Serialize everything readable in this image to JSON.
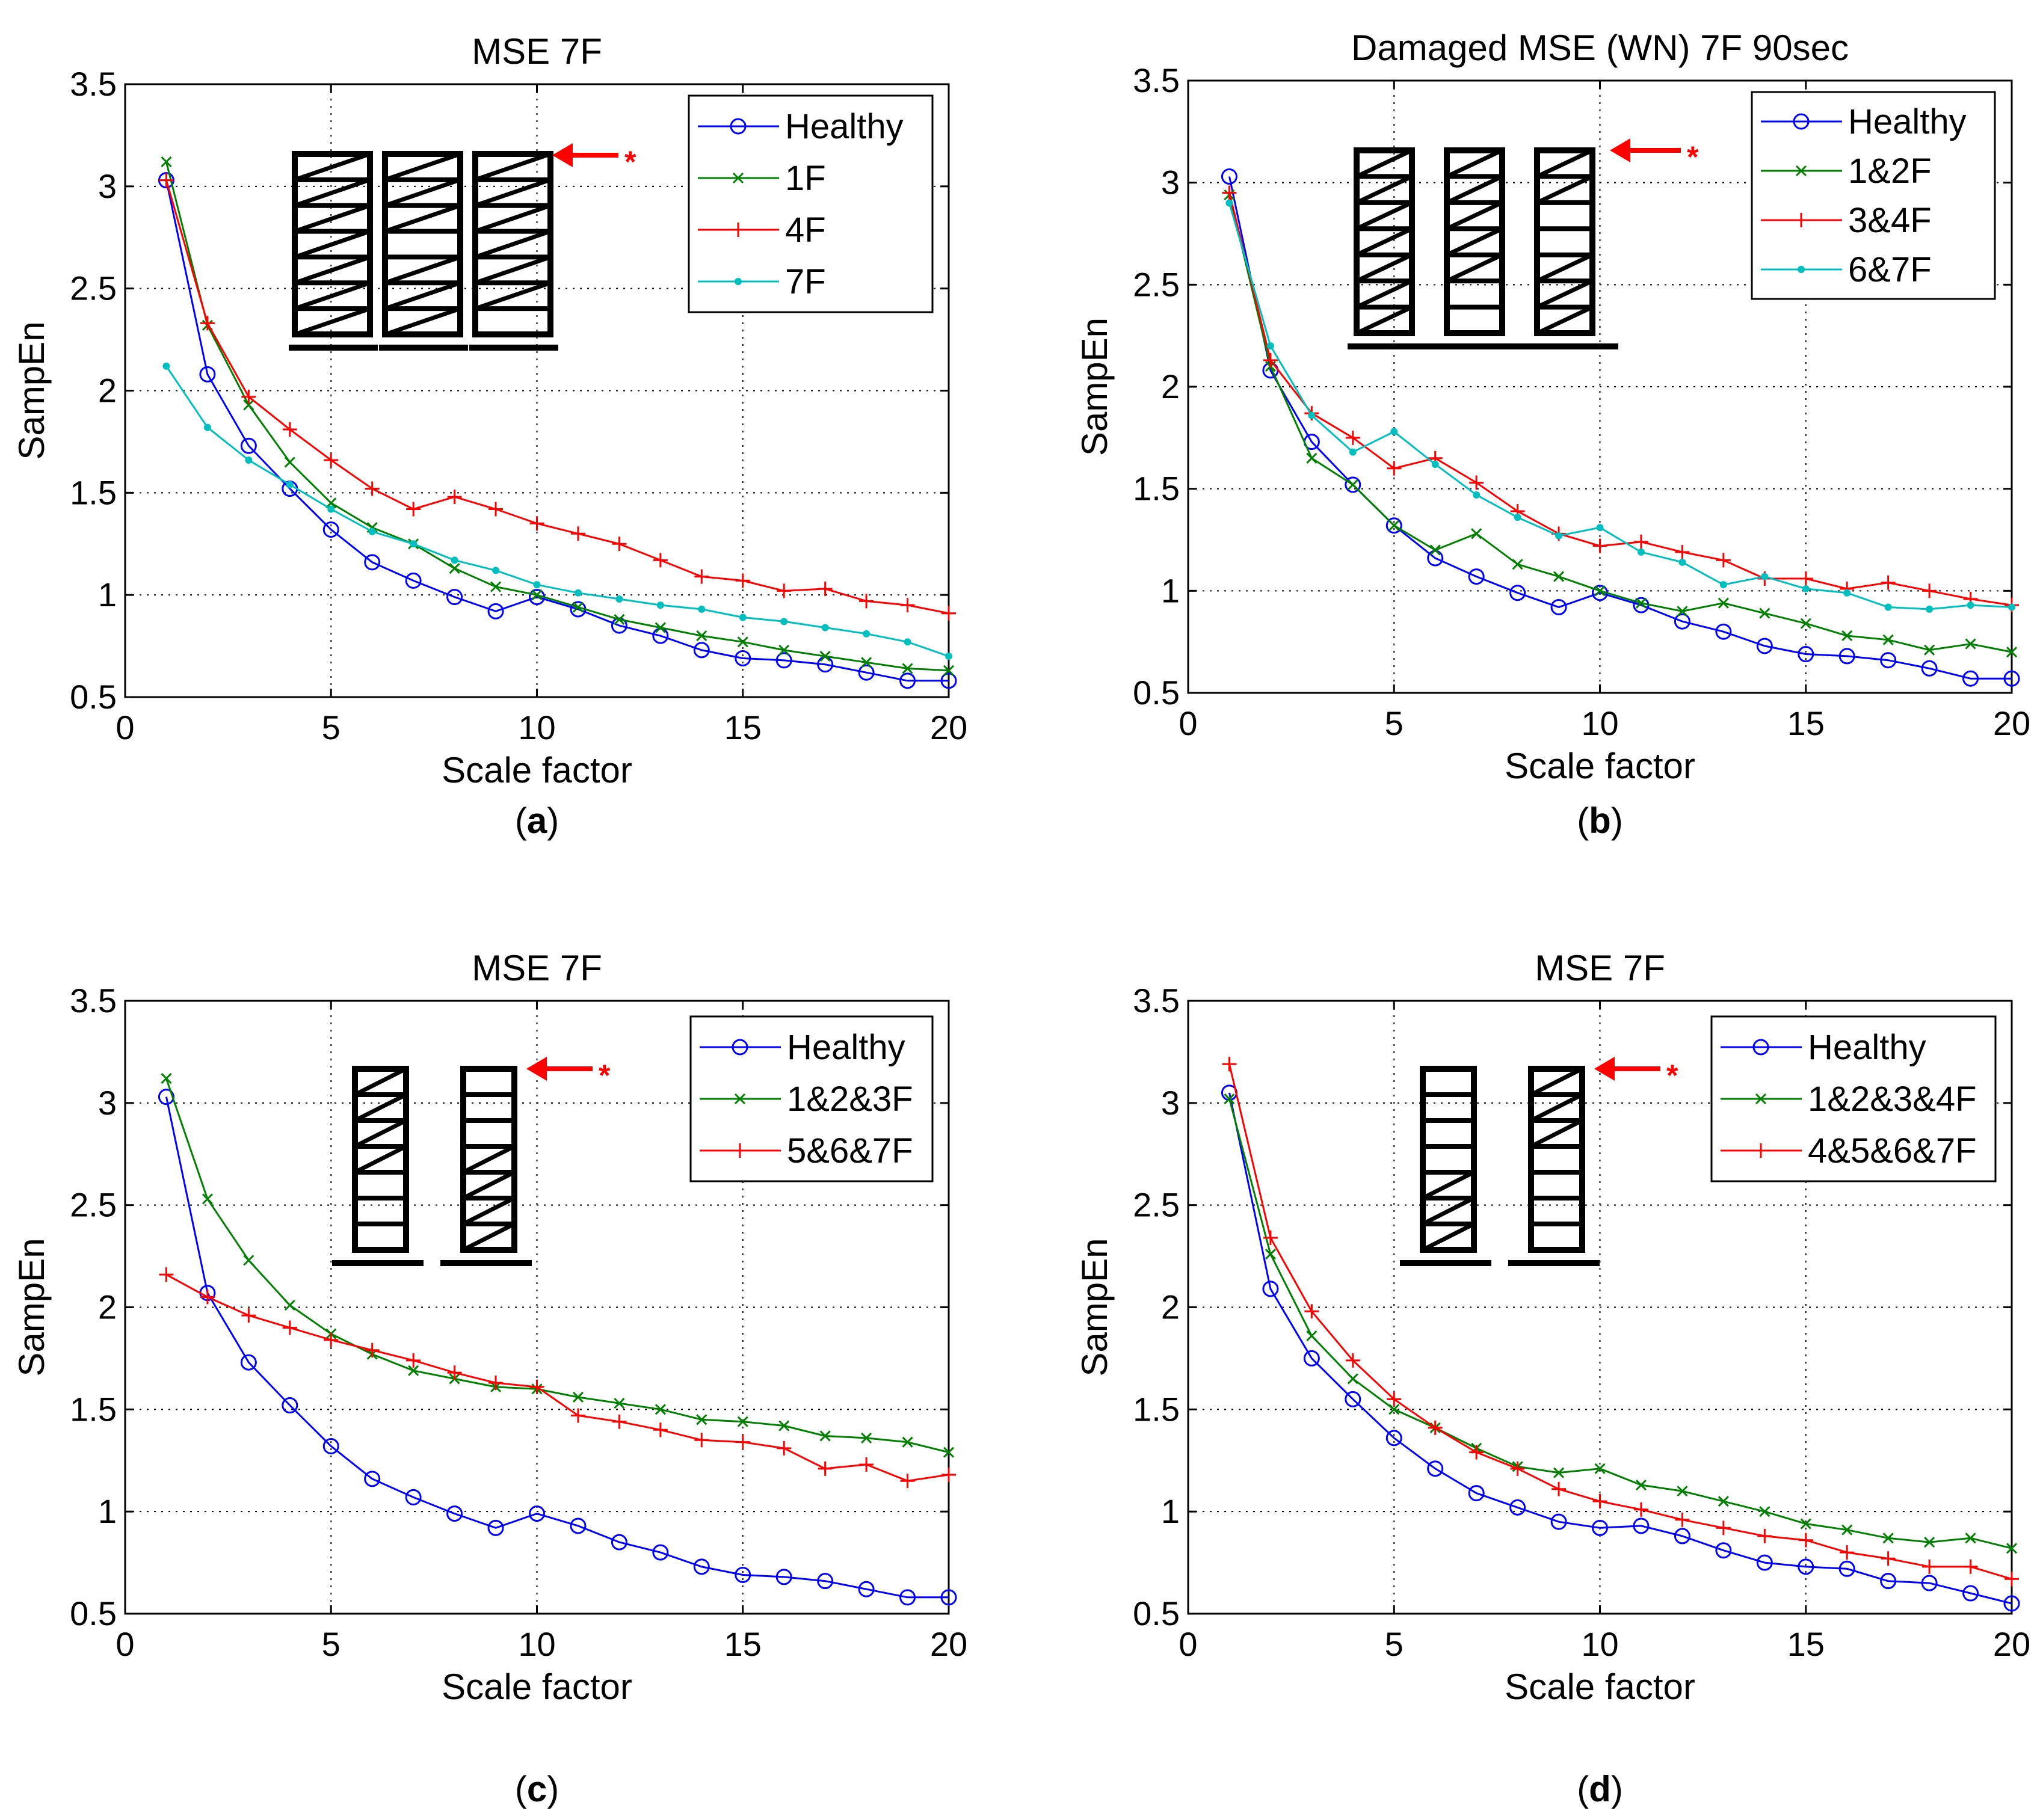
{
  "figure": {
    "panels": [
      "(a)",
      "(b)",
      "(c)",
      "(d)"
    ]
  },
  "chart_data": [
    {
      "id": "a",
      "type": "line",
      "title": "MSE 7F",
      "xlabel": "Scale factor",
      "ylabel": "SampEn",
      "xlim": [
        0,
        20
      ],
      "ylim": [
        0.5,
        3.5
      ],
      "xticks": [
        0,
        5,
        10,
        15,
        20
      ],
      "yticks": [
        0.5,
        1,
        1.5,
        2,
        2.5,
        3,
        3.5
      ],
      "grid": true,
      "legend": "top-right",
      "caption_letter": "a",
      "damage_marker": "*",
      "x": [
        1,
        2,
        3,
        4,
        5,
        6,
        7,
        8,
        9,
        10,
        11,
        12,
        13,
        14,
        15,
        16,
        17,
        18,
        19,
        20
      ],
      "series": [
        {
          "name": "Healthy",
          "color": "#0000ff",
          "marker": "circle",
          "values": [
            3.03,
            2.08,
            1.73,
            1.52,
            1.32,
            1.16,
            1.07,
            0.99,
            0.92,
            0.99,
            0.93,
            0.85,
            0.8,
            0.73,
            0.69,
            0.68,
            0.66,
            0.62,
            0.58,
            0.58
          ]
        },
        {
          "name": "1F",
          "color": "#008000",
          "marker": "x",
          "values": [
            3.12,
            2.32,
            1.93,
            1.65,
            1.45,
            1.33,
            1.25,
            1.13,
            1.04,
            1.0,
            0.94,
            0.88,
            0.84,
            0.8,
            0.77,
            0.73,
            0.7,
            0.67,
            0.64,
            0.63
          ]
        },
        {
          "name": "4F",
          "color": "#ff0000",
          "marker": "plus",
          "values": [
            3.03,
            2.33,
            1.97,
            1.81,
            1.66,
            1.52,
            1.42,
            1.48,
            1.42,
            1.35,
            1.3,
            1.25,
            1.17,
            1.09,
            1.07,
            1.02,
            1.03,
            0.97,
            0.95,
            0.91
          ]
        },
        {
          "name": "7F",
          "color": "#00bfbf",
          "marker": "dot",
          "values": [
            2.12,
            1.82,
            1.66,
            1.54,
            1.42,
            1.31,
            1.25,
            1.17,
            1.12,
            1.05,
            1.01,
            0.98,
            0.95,
            0.93,
            0.89,
            0.87,
            0.84,
            0.81,
            0.77,
            0.7
          ]
        }
      ]
    },
    {
      "id": "b",
      "type": "line",
      "title": "Damaged MSE (WN) 7F 90sec",
      "xlabel": "Scale factor",
      "ylabel": "SampEn",
      "xlim": [
        0,
        20
      ],
      "ylim": [
        0.5,
        3.5
      ],
      "xticks": [
        0,
        5,
        10,
        15,
        20
      ],
      "yticks": [
        0.5,
        1,
        1.5,
        2,
        2.5,
        3,
        3.5
      ],
      "grid": true,
      "legend": "top-right",
      "caption_letter": "b",
      "damage_marker": "*",
      "x": [
        1,
        2,
        3,
        4,
        5,
        6,
        7,
        8,
        9,
        10,
        11,
        12,
        13,
        14,
        15,
        16,
        17,
        18,
        19,
        20
      ],
      "series": [
        {
          "name": "Healthy",
          "color": "#0000ff",
          "marker": "circle",
          "values": [
            3.03,
            2.08,
            1.73,
            1.52,
            1.32,
            1.16,
            1.07,
            0.99,
            0.92,
            0.99,
            0.93,
            0.85,
            0.8,
            0.73,
            0.69,
            0.68,
            0.66,
            0.62,
            0.57,
            0.57
          ]
        },
        {
          "name": "1&2F",
          "color": "#008000",
          "marker": "x",
          "values": [
            2.94,
            2.1,
            1.65,
            1.52,
            1.32,
            1.2,
            1.28,
            1.13,
            1.07,
            1.0,
            0.94,
            0.9,
            0.94,
            0.89,
            0.84,
            0.78,
            0.76,
            0.71,
            0.74,
            0.7
          ]
        },
        {
          "name": "3&4F",
          "color": "#ff0000",
          "marker": "plus",
          "values": [
            2.95,
            2.13,
            1.87,
            1.75,
            1.6,
            1.65,
            1.53,
            1.39,
            1.28,
            1.22,
            1.24,
            1.19,
            1.15,
            1.06,
            1.06,
            1.01,
            1.04,
            1.0,
            0.96,
            0.93
          ]
        },
        {
          "name": "6&7F",
          "color": "#00bfbf",
          "marker": "dot",
          "values": [
            2.9,
            2.2,
            1.86,
            1.68,
            1.78,
            1.62,
            1.47,
            1.36,
            1.27,
            1.31,
            1.19,
            1.14,
            1.03,
            1.07,
            1.01,
            0.99,
            0.92,
            0.91,
            0.93,
            0.92
          ]
        }
      ]
    },
    {
      "id": "c",
      "type": "line",
      "title": "MSE 7F",
      "xlabel": "Scale factor",
      "ylabel": "SampEn",
      "xlim": [
        0,
        20
      ],
      "ylim": [
        0.5,
        3.5
      ],
      "xticks": [
        0,
        5,
        10,
        15,
        20
      ],
      "yticks": [
        0.5,
        1,
        1.5,
        2,
        2.5,
        3,
        3.5
      ],
      "grid": true,
      "legend": "top-right",
      "caption_letter": "c",
      "damage_marker": "*",
      "x": [
        1,
        2,
        3,
        4,
        5,
        6,
        7,
        8,
        9,
        10,
        11,
        12,
        13,
        14,
        15,
        16,
        17,
        18,
        19,
        20
      ],
      "series": [
        {
          "name": "Healthy",
          "color": "#0000ff",
          "marker": "circle",
          "values": [
            3.03,
            2.07,
            1.73,
            1.52,
            1.32,
            1.16,
            1.07,
            0.99,
            0.92,
            0.99,
            0.93,
            0.85,
            0.8,
            0.73,
            0.69,
            0.68,
            0.66,
            0.62,
            0.58,
            0.58
          ]
        },
        {
          "name": "1&2&3F",
          "color": "#008000",
          "marker": "x",
          "values": [
            3.12,
            2.53,
            2.23,
            2.01,
            1.87,
            1.77,
            1.69,
            1.65,
            1.61,
            1.6,
            1.56,
            1.53,
            1.5,
            1.45,
            1.44,
            1.42,
            1.37,
            1.36,
            1.34,
            1.29
          ]
        },
        {
          "name": "5&6&7F",
          "color": "#ff0000",
          "marker": "plus",
          "values": [
            2.16,
            2.05,
            1.96,
            1.9,
            1.84,
            1.79,
            1.74,
            1.68,
            1.63,
            1.61,
            1.47,
            1.44,
            1.4,
            1.35,
            1.34,
            1.31,
            1.21,
            1.23,
            1.15,
            1.18
          ]
        }
      ]
    },
    {
      "id": "d",
      "type": "line",
      "title": "MSE 7F",
      "xlabel": "Scale factor",
      "ylabel": "SampEn",
      "xlim": [
        0,
        20
      ],
      "ylim": [
        0.5,
        3.5
      ],
      "xticks": [
        0,
        5,
        10,
        15,
        20
      ],
      "yticks": [
        0.5,
        1,
        1.5,
        2,
        2.5,
        3,
        3.5
      ],
      "grid": true,
      "legend": "top-right",
      "caption_letter": "d",
      "damage_marker": "*",
      "x": [
        1,
        2,
        3,
        4,
        5,
        6,
        7,
        8,
        9,
        10,
        11,
        12,
        13,
        14,
        15,
        16,
        17,
        18,
        19,
        20
      ],
      "series": [
        {
          "name": "Healthy",
          "color": "#0000ff",
          "marker": "circle",
          "values": [
            3.05,
            2.09,
            1.75,
            1.55,
            1.36,
            1.21,
            1.09,
            1.02,
            0.95,
            0.92,
            0.93,
            0.88,
            0.81,
            0.75,
            0.73,
            0.72,
            0.66,
            0.65,
            0.6,
            0.55
          ]
        },
        {
          "name": "1&2&3&4F",
          "color": "#008000",
          "marker": "x",
          "values": [
            3.02,
            2.26,
            1.86,
            1.65,
            1.5,
            1.41,
            1.31,
            1.22,
            1.19,
            1.21,
            1.13,
            1.1,
            1.05,
            1.0,
            0.94,
            0.91,
            0.87,
            0.85,
            0.87,
            0.82
          ]
        },
        {
          "name": "4&5&6&7F",
          "color": "#ff0000",
          "marker": "plus",
          "values": [
            3.19,
            2.34,
            1.98,
            1.74,
            1.55,
            1.41,
            1.29,
            1.21,
            1.11,
            1.05,
            1.01,
            0.96,
            0.92,
            0.88,
            0.86,
            0.8,
            0.77,
            0.73,
            0.73,
            0.67
          ]
        }
      ]
    }
  ]
}
